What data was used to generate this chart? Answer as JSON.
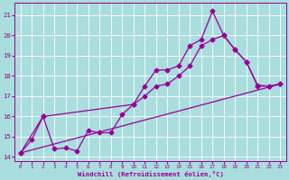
{
  "xlabel": "Windchill (Refroidissement éolien,°C)",
  "bg_color": "#aadddd",
  "grid_color": "#ffffff",
  "line_color": "#990099",
  "xlim": [
    -0.5,
    23.5
  ],
  "ylim": [
    13.8,
    21.6
  ],
  "xticks": [
    0,
    1,
    2,
    3,
    4,
    5,
    6,
    7,
    8,
    9,
    10,
    11,
    12,
    13,
    14,
    15,
    16,
    17,
    18,
    19,
    20,
    21,
    22,
    23
  ],
  "yticks": [
    14,
    15,
    16,
    17,
    18,
    19,
    20,
    21
  ],
  "line1_x": [
    0,
    1,
    2,
    3,
    4,
    5,
    6,
    7,
    8,
    9,
    10,
    11,
    12,
    13,
    14,
    15,
    16,
    17,
    18,
    19,
    20,
    21,
    22,
    23
  ],
  "line1_y": [
    14.2,
    14.85,
    16.0,
    14.4,
    14.45,
    14.3,
    15.3,
    15.2,
    15.2,
    16.1,
    16.6,
    17.5,
    18.3,
    18.3,
    18.5,
    19.5,
    19.8,
    21.2,
    20.0,
    19.3,
    18.7,
    17.55,
    17.5,
    17.6
  ],
  "line2_x": [
    0,
    2,
    10,
    11,
    12,
    13,
    14,
    15,
    16,
    17,
    18,
    19,
    20,
    21,
    22,
    23
  ],
  "line2_y": [
    14.2,
    16.0,
    16.6,
    17.0,
    17.5,
    17.6,
    18.0,
    18.5,
    19.5,
    19.8,
    20.0,
    19.3,
    18.7,
    17.5,
    17.5,
    17.6
  ],
  "line3_x": [
    0,
    23
  ],
  "line3_y": [
    14.2,
    17.6
  ]
}
